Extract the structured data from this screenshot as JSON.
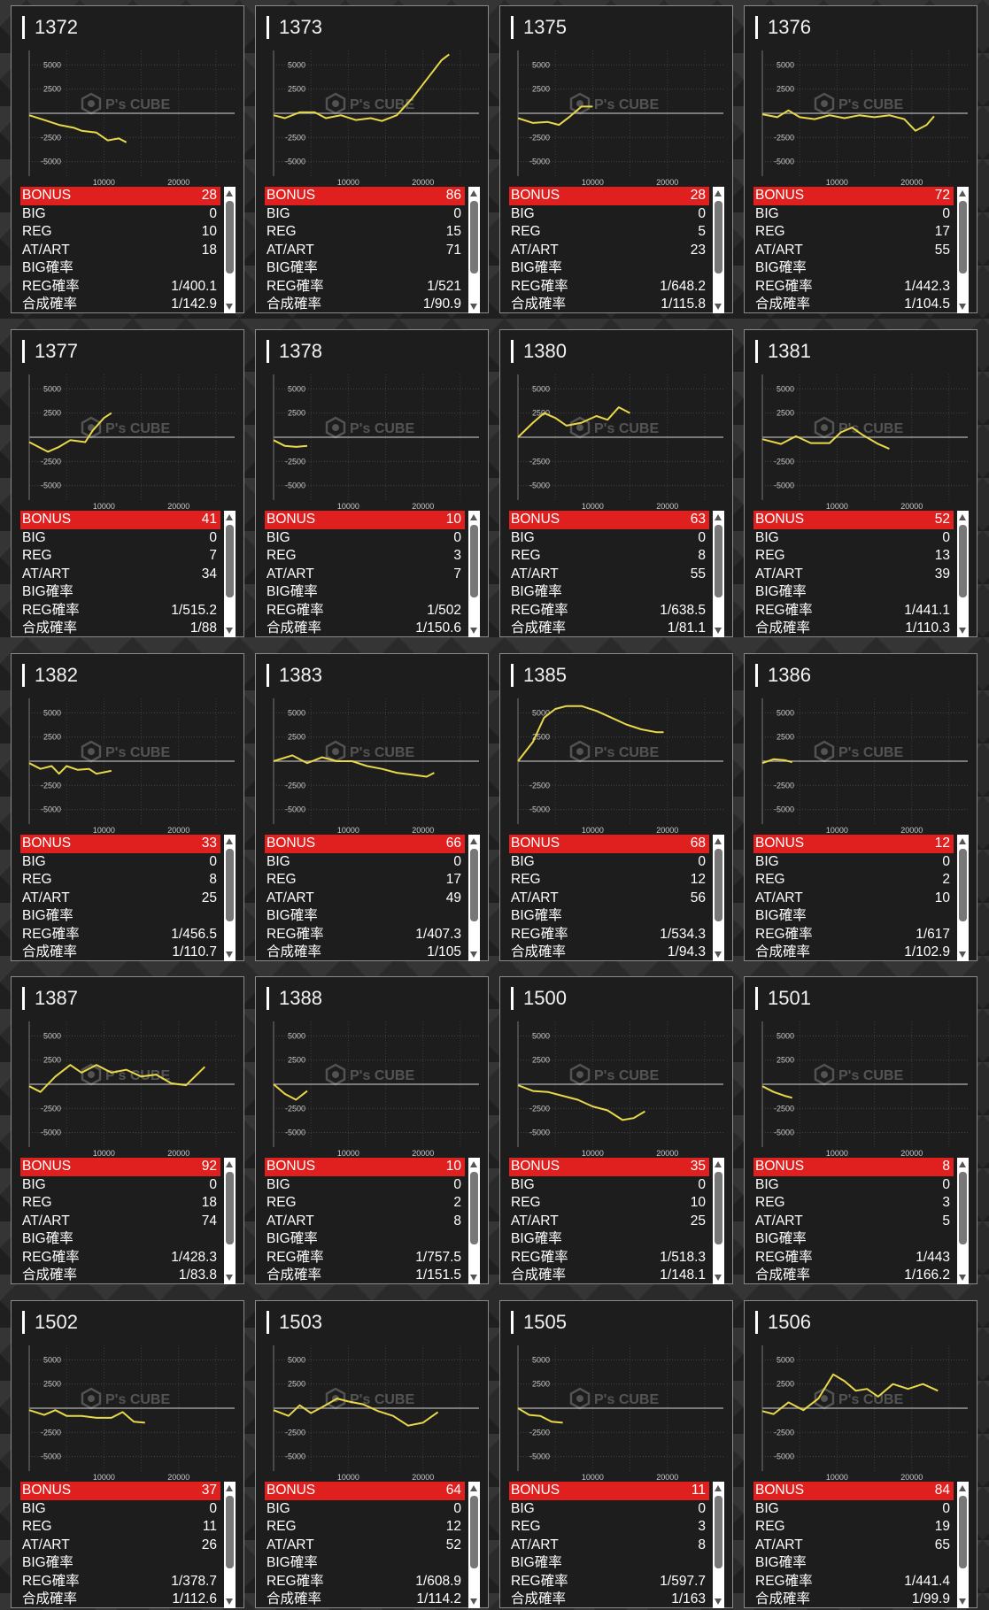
{
  "colors": {
    "bonus_bg": "#e0201e",
    "line": "#e8d84a",
    "panel": "#1d1d1d",
    "axis": "#b0b0b0"
  },
  "watermark": "P's CUBE",
  "graph_axis": {
    "y_ticks": [
      "5000",
      "2500",
      "-2500",
      "-5000"
    ],
    "x_ticks": [
      "10000",
      "20000"
    ],
    "ylim": [
      -6500,
      6500
    ],
    "xlim": [
      0,
      27500
    ]
  },
  "stat_labels": {
    "bonus": "BONUS",
    "big": "BIG",
    "reg": "REG",
    "atart": "AT/ART",
    "big_rate": "BIG確率",
    "reg_rate": "REG確率",
    "total_rate": "合成確率"
  },
  "machines": [
    {
      "id": "1372",
      "bonus": "28",
      "big": "0",
      "reg": "10",
      "atart": "18",
      "big_rate": "",
      "reg_rate": "1/400.1",
      "total_rate": "1/142.9",
      "chart_data": {
        "type": "line",
        "x": [
          0,
          2000,
          4000,
          6000,
          7000,
          9000,
          10500,
          12000,
          13000
        ],
        "y": [
          -200,
          -700,
          -1200,
          -1500,
          -1800,
          -2000,
          -2800,
          -2600,
          -3000
        ]
      }
    },
    {
      "id": "1373",
      "bonus": "86",
      "big": "0",
      "reg": "15",
      "atart": "71",
      "big_rate": "",
      "reg_rate": "1/521",
      "total_rate": "1/90.9",
      "chart_data": {
        "type": "line",
        "x": [
          0,
          1500,
          3500,
          5500,
          7000,
          9000,
          11000,
          13000,
          14500,
          16500,
          18500,
          20500,
          22500,
          23500
        ],
        "y": [
          -200,
          -500,
          100,
          100,
          -500,
          -200,
          -700,
          -500,
          -800,
          -200,
          1500,
          3500,
          5500,
          6100
        ]
      }
    },
    {
      "id": "1375",
      "bonus": "28",
      "big": "0",
      "reg": "5",
      "atart": "23",
      "big_rate": "",
      "reg_rate": "1/648.2",
      "total_rate": "1/115.8",
      "chart_data": {
        "type": "line",
        "x": [
          0,
          2000,
          4000,
          5500,
          7000,
          8500,
          10000
        ],
        "y": [
          -500,
          -1000,
          -900,
          -1200,
          -300,
          700,
          700
        ]
      }
    },
    {
      "id": "1376",
      "bonus": "72",
      "big": "0",
      "reg": "17",
      "atart": "55",
      "big_rate": "",
      "reg_rate": "1/442.3",
      "total_rate": "1/104.5",
      "chart_data": {
        "type": "line",
        "x": [
          0,
          2000,
          3500,
          5000,
          7000,
          9000,
          11000,
          13000,
          15000,
          17000,
          19000,
          20500,
          22000,
          23000
        ],
        "y": [
          -100,
          -400,
          300,
          -400,
          -600,
          -200,
          -500,
          -200,
          -400,
          -200,
          -600,
          -1800,
          -1200,
          -300
        ]
      }
    },
    {
      "id": "1377",
      "bonus": "41",
      "big": "0",
      "reg": "7",
      "atart": "34",
      "big_rate": "",
      "reg_rate": "1/515.2",
      "total_rate": "1/88",
      "chart_data": {
        "type": "line",
        "x": [
          0,
          2500,
          4000,
          5500,
          7500,
          8500,
          10000,
          11000
        ],
        "y": [
          -500,
          -1500,
          -1000,
          -300,
          -500,
          700,
          2000,
          2500
        ]
      }
    },
    {
      "id": "1378",
      "bonus": "10",
      "big": "0",
      "reg": "3",
      "atart": "7",
      "big_rate": "",
      "reg_rate": "1/502",
      "total_rate": "1/150.6",
      "chart_data": {
        "type": "line",
        "x": [
          0,
          1500,
          3000,
          4500
        ],
        "y": [
          -300,
          -900,
          -1000,
          -900
        ]
      }
    },
    {
      "id": "1380",
      "bonus": "63",
      "big": "0",
      "reg": "8",
      "atart": "55",
      "big_rate": "",
      "reg_rate": "1/638.5",
      "total_rate": "1/81.1",
      "chart_data": {
        "type": "line",
        "x": [
          0,
          2000,
          3500,
          5000,
          6500,
          8500,
          10500,
          12000,
          13500,
          15000
        ],
        "y": [
          0,
          1500,
          2500,
          2000,
          1200,
          1500,
          2200,
          1800,
          3100,
          2500
        ]
      }
    },
    {
      "id": "1381",
      "bonus": "52",
      "big": "0",
      "reg": "13",
      "atart": "39",
      "big_rate": "",
      "reg_rate": "1/441.1",
      "total_rate": "1/110.3",
      "chart_data": {
        "type": "line",
        "x": [
          0,
          2500,
          4500,
          6500,
          9000,
          10500,
          12000,
          13500,
          15500,
          17000
        ],
        "y": [
          -200,
          -700,
          100,
          -600,
          -600,
          500,
          1000,
          200,
          -700,
          -1200
        ]
      }
    },
    {
      "id": "1382",
      "bonus": "33",
      "big": "0",
      "reg": "8",
      "atart": "25",
      "big_rate": "",
      "reg_rate": "1/456.5",
      "total_rate": "1/110.7",
      "chart_data": {
        "type": "line",
        "x": [
          0,
          1500,
          3000,
          4000,
          5000,
          6500,
          8000,
          9000,
          11000
        ],
        "y": [
          -200,
          -800,
          -500,
          -1300,
          -500,
          -900,
          -800,
          -1300,
          -1000
        ]
      }
    },
    {
      "id": "1383",
      "bonus": "66",
      "big": "0",
      "reg": "17",
      "atart": "49",
      "big_rate": "",
      "reg_rate": "1/407.3",
      "total_rate": "1/105",
      "chart_data": {
        "type": "line",
        "x": [
          0,
          2500,
          4500,
          6500,
          8500,
          10500,
          12500,
          14500,
          16500,
          18500,
          20500,
          21500
        ],
        "y": [
          0,
          600,
          -200,
          400,
          0,
          0,
          -500,
          -800,
          -1200,
          -1400,
          -1600,
          -1200
        ]
      }
    },
    {
      "id": "1385",
      "bonus": "68",
      "big": "0",
      "reg": "12",
      "atart": "56",
      "big_rate": "",
      "reg_rate": "1/534.3",
      "total_rate": "1/94.3",
      "chart_data": {
        "type": "line",
        "x": [
          0,
          2000,
          3500,
          5000,
          6500,
          8500,
          10500,
          12500,
          14500,
          16500,
          18500,
          19500
        ],
        "y": [
          0,
          2000,
          4500,
          5400,
          5700,
          5700,
          5200,
          4500,
          3800,
          3300,
          3000,
          3000
        ]
      }
    },
    {
      "id": "1386",
      "bonus": "12",
      "big": "0",
      "reg": "2",
      "atart": "10",
      "big_rate": "",
      "reg_rate": "1/617",
      "total_rate": "1/102.9",
      "chart_data": {
        "type": "line",
        "x": [
          0,
          1500,
          3000,
          4000
        ],
        "y": [
          -200,
          200,
          100,
          -100
        ]
      }
    },
    {
      "id": "1387",
      "bonus": "92",
      "big": "0",
      "reg": "18",
      "atart": "74",
      "big_rate": "",
      "reg_rate": "1/428.3",
      "total_rate": "1/83.8",
      "chart_data": {
        "type": "line",
        "x": [
          0,
          1500,
          3500,
          5500,
          7000,
          9000,
          11000,
          13000,
          15000,
          17000,
          19000,
          21000,
          23500
        ],
        "y": [
          -200,
          -800,
          800,
          2000,
          1200,
          2000,
          1200,
          1500,
          800,
          1000,
          100,
          -100,
          1800
        ]
      }
    },
    {
      "id": "1388",
      "bonus": "10",
      "big": "0",
      "reg": "2",
      "atart": "8",
      "big_rate": "",
      "reg_rate": "1/757.5",
      "total_rate": "1/151.5",
      "chart_data": {
        "type": "line",
        "x": [
          0,
          1500,
          3000,
          4500
        ],
        "y": [
          0,
          -1000,
          -1600,
          -700
        ]
      }
    },
    {
      "id": "1500",
      "bonus": "35",
      "big": "0",
      "reg": "10",
      "atart": "25",
      "big_rate": "",
      "reg_rate": "1/518.3",
      "total_rate": "1/148.1",
      "chart_data": {
        "type": "line",
        "x": [
          0,
          2000,
          4000,
          6000,
          8000,
          10000,
          12000,
          14000,
          15500,
          17000
        ],
        "y": [
          -100,
          -700,
          -800,
          -1200,
          -1600,
          -2300,
          -2700,
          -3700,
          -3500,
          -2800
        ]
      }
    },
    {
      "id": "1501",
      "bonus": "8",
      "big": "0",
      "reg": "3",
      "atart": "5",
      "big_rate": "",
      "reg_rate": "1/443",
      "total_rate": "1/166.2",
      "chart_data": {
        "type": "line",
        "x": [
          0,
          1500,
          3000,
          4000
        ],
        "y": [
          -200,
          -800,
          -1200,
          -1400
        ]
      }
    },
    {
      "id": "1502",
      "bonus": "37",
      "big": "0",
      "reg": "11",
      "atart": "26",
      "big_rate": "",
      "reg_rate": "1/378.7",
      "total_rate": "1/112.6",
      "chart_data": {
        "type": "line",
        "x": [
          0,
          2000,
          3500,
          5000,
          7000,
          9000,
          11000,
          12500,
          14000,
          15500
        ],
        "y": [
          -200,
          -700,
          -200,
          -800,
          -800,
          -1000,
          -1000,
          -400,
          -1400,
          -1500
        ]
      }
    },
    {
      "id": "1503",
      "bonus": "64",
      "big": "0",
      "reg": "12",
      "atart": "52",
      "big_rate": "",
      "reg_rate": "1/608.9",
      "total_rate": "1/114.2",
      "chart_data": {
        "type": "line",
        "x": [
          0,
          2000,
          3500,
          5000,
          6500,
          8500,
          10000,
          12000,
          14000,
          16000,
          18000,
          20000,
          22000
        ],
        "y": [
          -200,
          -800,
          300,
          -500,
          100,
          1000,
          700,
          400,
          -300,
          -800,
          -1800,
          -1500,
          -400
        ]
      }
    },
    {
      "id": "1505",
      "bonus": "11",
      "big": "0",
      "reg": "3",
      "atart": "8",
      "big_rate": "",
      "reg_rate": "1/597.7",
      "total_rate": "1/163",
      "chart_data": {
        "type": "line",
        "x": [
          0,
          1500,
          3000,
          4500,
          6000
        ],
        "y": [
          0,
          -700,
          -800,
          -1400,
          -1500
        ]
      }
    },
    {
      "id": "1506",
      "bonus": "84",
      "big": "0",
      "reg": "19",
      "atart": "65",
      "big_rate": "",
      "reg_rate": "1/441.4",
      "total_rate": "1/99.9",
      "chart_data": {
        "type": "line",
        "x": [
          0,
          1500,
          3500,
          5500,
          7500,
          9500,
          11000,
          12500,
          14000,
          15500,
          17500,
          19500,
          21500,
          23500
        ],
        "y": [
          -300,
          -600,
          600,
          -200,
          1000,
          3500,
          2800,
          1800,
          2000,
          1200,
          2500,
          2000,
          2500,
          1800
        ]
      }
    }
  ]
}
